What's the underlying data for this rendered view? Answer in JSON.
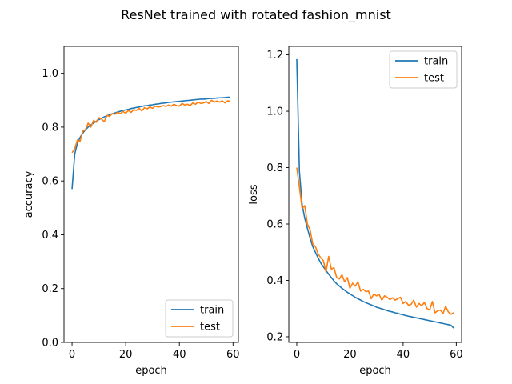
{
  "figure": {
    "title": "ResNet trained with rotated fashion_mnist"
  },
  "chart_data": [
    {
      "type": "line",
      "title": "",
      "xlabel": "epoch",
      "ylabel": "accuracy",
      "xlim": [
        -3,
        62
      ],
      "ylim": [
        0.0,
        1.1
      ],
      "xticks": [
        0,
        20,
        40,
        60
      ],
      "yticks": [
        0.0,
        0.2,
        0.4,
        0.6,
        0.8,
        1.0
      ],
      "xtick_labels": [
        "0",
        "20",
        "40",
        "60"
      ],
      "ytick_labels": [
        "0.0",
        "0.2",
        "0.4",
        "0.6",
        "0.8",
        "1.0"
      ],
      "grid": false,
      "legend_position": "lower-right",
      "x": [
        0,
        1,
        2,
        3,
        4,
        5,
        6,
        7,
        8,
        9,
        10,
        11,
        12,
        13,
        14,
        15,
        16,
        17,
        18,
        19,
        20,
        21,
        22,
        23,
        24,
        25,
        26,
        27,
        28,
        29,
        30,
        31,
        32,
        33,
        34,
        35,
        36,
        37,
        38,
        39,
        40,
        41,
        42,
        43,
        44,
        45,
        46,
        47,
        48,
        49,
        50,
        51,
        52,
        53,
        54,
        55,
        56,
        57,
        58,
        59
      ],
      "series": [
        {
          "name": "train",
          "color": "#1f77b4",
          "values": [
            0.57,
            0.7,
            0.74,
            0.762,
            0.778,
            0.79,
            0.8,
            0.808,
            0.815,
            0.822,
            0.828,
            0.833,
            0.838,
            0.842,
            0.846,
            0.85,
            0.853,
            0.856,
            0.859,
            0.862,
            0.864,
            0.866,
            0.869,
            0.871,
            0.873,
            0.875,
            0.877,
            0.879,
            0.88,
            0.882,
            0.883,
            0.885,
            0.886,
            0.888,
            0.889,
            0.89,
            0.892,
            0.893,
            0.894,
            0.895,
            0.896,
            0.897,
            0.898,
            0.899,
            0.9,
            0.901,
            0.902,
            0.903,
            0.904,
            0.904,
            0.905,
            0.906,
            0.907,
            0.907,
            0.908,
            0.909,
            0.909,
            0.91,
            0.911,
            0.911
          ]
        },
        {
          "name": "test",
          "color": "#ff7f0e",
          "values": [
            0.705,
            0.72,
            0.752,
            0.748,
            0.785,
            0.79,
            0.815,
            0.8,
            0.825,
            0.818,
            0.835,
            0.83,
            0.82,
            0.843,
            0.84,
            0.85,
            0.848,
            0.855,
            0.85,
            0.858,
            0.852,
            0.862,
            0.855,
            0.865,
            0.862,
            0.87,
            0.86,
            0.872,
            0.868,
            0.875,
            0.87,
            0.878,
            0.875,
            0.876,
            0.88,
            0.877,
            0.882,
            0.878,
            0.885,
            0.88,
            0.878,
            0.888,
            0.882,
            0.885,
            0.88,
            0.89,
            0.885,
            0.893,
            0.888,
            0.89,
            0.895,
            0.888,
            0.9,
            0.893,
            0.897,
            0.893,
            0.898,
            0.89,
            0.898,
            0.896
          ]
        }
      ]
    },
    {
      "type": "line",
      "title": "",
      "xlabel": "epoch",
      "ylabel": "loss",
      "xlim": [
        -3,
        62
      ],
      "ylim": [
        0.18,
        1.23
      ],
      "xticks": [
        0,
        20,
        40,
        60
      ],
      "yticks": [
        0.2,
        0.4,
        0.6,
        0.8,
        1.0,
        1.2
      ],
      "xtick_labels": [
        "0",
        "20",
        "40",
        "60"
      ],
      "ytick_labels": [
        "0.2",
        "0.4",
        "0.6",
        "0.8",
        "1.0",
        "1.2"
      ],
      "grid": false,
      "legend_position": "upper-right",
      "x": [
        0,
        1,
        2,
        3,
        4,
        5,
        6,
        7,
        8,
        9,
        10,
        11,
        12,
        13,
        14,
        15,
        16,
        17,
        18,
        19,
        20,
        21,
        22,
        23,
        24,
        25,
        26,
        27,
        28,
        29,
        30,
        31,
        32,
        33,
        34,
        35,
        36,
        37,
        38,
        39,
        40,
        41,
        42,
        43,
        44,
        45,
        46,
        47,
        48,
        49,
        50,
        51,
        52,
        53,
        54,
        55,
        56,
        57,
        58,
        59
      ],
      "series": [
        {
          "name": "train",
          "color": "#1f77b4",
          "values": [
            1.185,
            0.785,
            0.67,
            0.62,
            0.585,
            0.55,
            0.52,
            0.5,
            0.48,
            0.462,
            0.448,
            0.435,
            0.422,
            0.41,
            0.398,
            0.388,
            0.38,
            0.372,
            0.365,
            0.358,
            0.352,
            0.346,
            0.34,
            0.335,
            0.33,
            0.325,
            0.321,
            0.317,
            0.313,
            0.309,
            0.305,
            0.302,
            0.299,
            0.296,
            0.293,
            0.29,
            0.288,
            0.285,
            0.283,
            0.28,
            0.278,
            0.275,
            0.273,
            0.271,
            0.269,
            0.267,
            0.265,
            0.263,
            0.261,
            0.259,
            0.257,
            0.255,
            0.253,
            0.251,
            0.249,
            0.247,
            0.245,
            0.243,
            0.241,
            0.231
          ]
        },
        {
          "name": "test",
          "color": "#ff7f0e",
          "values": [
            0.8,
            0.73,
            0.655,
            0.665,
            0.6,
            0.58,
            0.53,
            0.52,
            0.495,
            0.48,
            0.47,
            0.43,
            0.485,
            0.44,
            0.445,
            0.41,
            0.405,
            0.42,
            0.395,
            0.41,
            0.372,
            0.39,
            0.38,
            0.395,
            0.362,
            0.368,
            0.36,
            0.362,
            0.335,
            0.352,
            0.345,
            0.35,
            0.33,
            0.345,
            0.34,
            0.332,
            0.338,
            0.33,
            0.335,
            0.34,
            0.318,
            0.325,
            0.312,
            0.315,
            0.33,
            0.305,
            0.318,
            0.31,
            0.322,
            0.3,
            0.295,
            0.325,
            0.285,
            0.292,
            0.295,
            0.282,
            0.308,
            0.288,
            0.28,
            0.285
          ]
        }
      ]
    }
  ]
}
